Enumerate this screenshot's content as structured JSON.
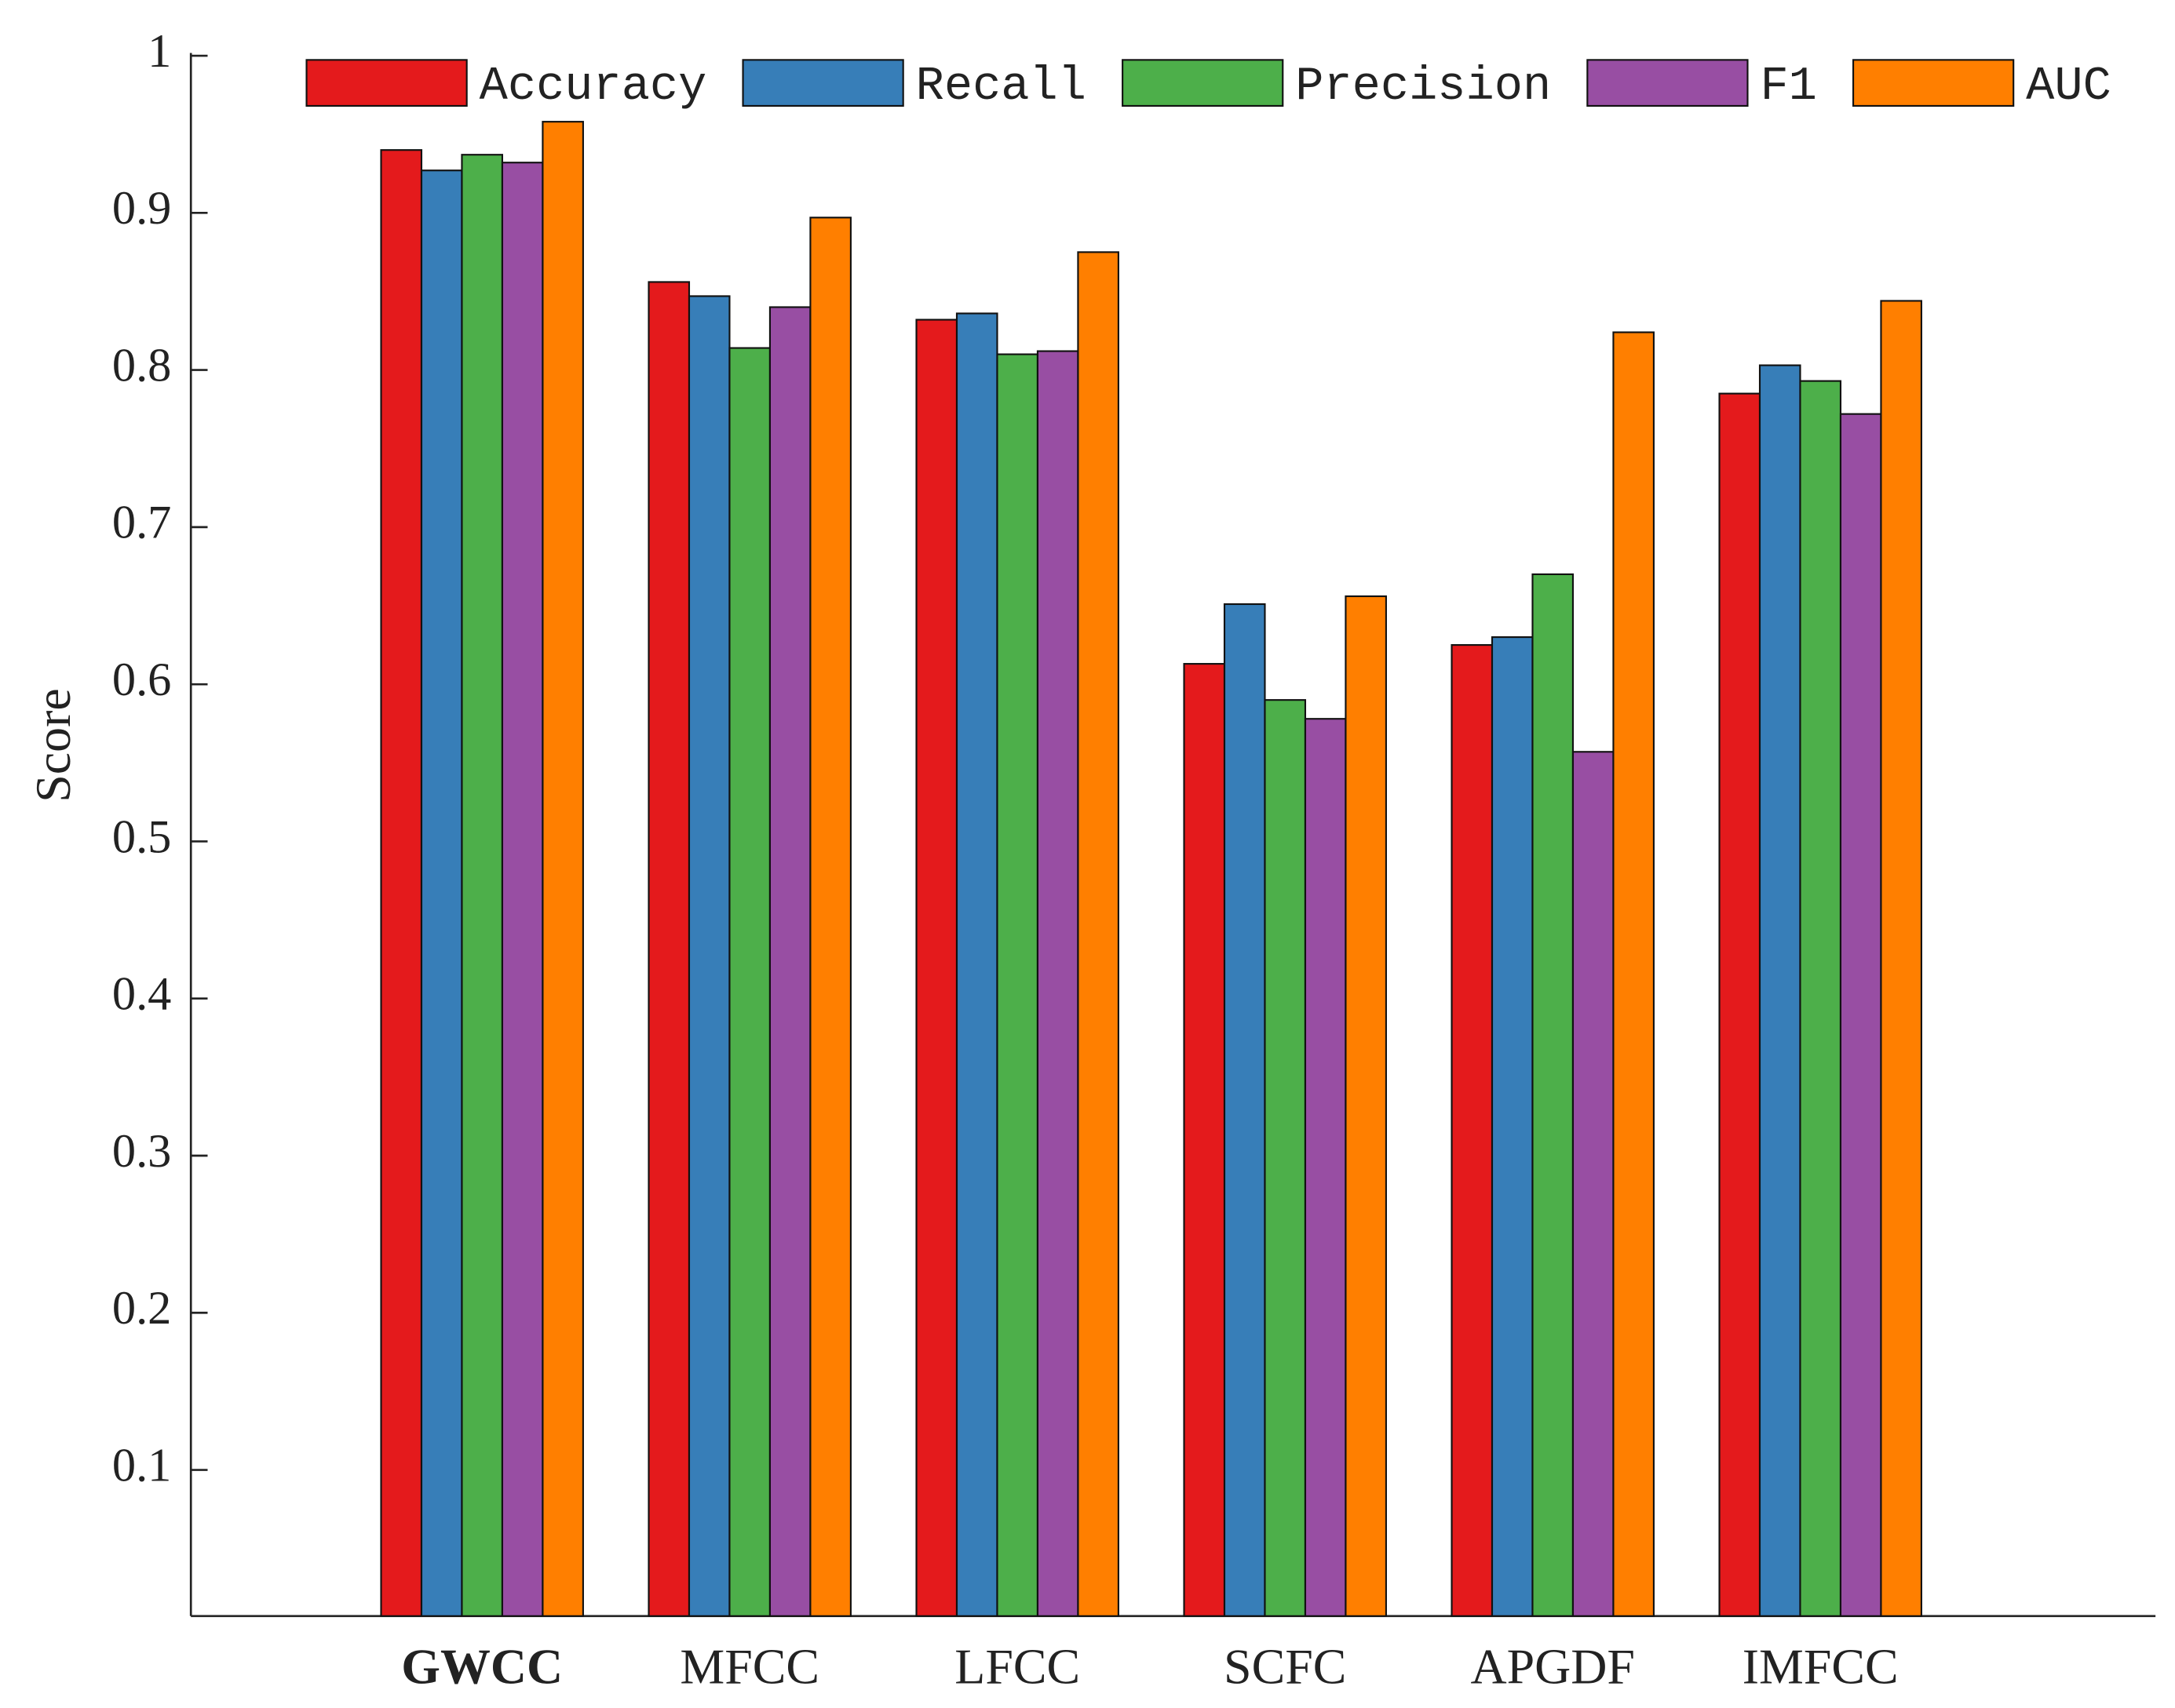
{
  "chart_data": {
    "type": "bar",
    "y_label": "Score",
    "categories": [
      "GWCC",
      "MFCC",
      "LFCC",
      "SCFC",
      "APGDF",
      "IMFCC"
    ],
    "bold_category_index": 0,
    "series": [
      {
        "name": "Accuracy",
        "color": "#e41a1c",
        "values": [
          0.94,
          0.856,
          0.832,
          0.613,
          0.625,
          0.785
        ]
      },
      {
        "name": "Recall",
        "color": "#377eb8",
        "values": [
          0.927,
          0.847,
          0.836,
          0.651,
          0.63,
          0.803
        ]
      },
      {
        "name": "Precision",
        "color": "#4daf4a",
        "values": [
          0.937,
          0.814,
          0.81,
          0.59,
          0.67,
          0.793
        ]
      },
      {
        "name": "F1",
        "color": "#984ea3",
        "values": [
          0.932,
          0.84,
          0.812,
          0.578,
          0.557,
          0.772
        ]
      },
      {
        "name": "AUC",
        "color": "#ff7f00",
        "values": [
          0.958,
          0.897,
          0.875,
          0.656,
          0.824,
          0.844
        ]
      }
    ],
    "ylim": [
      0.007,
      1
    ],
    "yticks": [
      0.1,
      0.2,
      0.3,
      0.4,
      0.5,
      0.6,
      0.7,
      0.8,
      0.9,
      1
    ],
    "legend": "top",
    "grid": false
  }
}
